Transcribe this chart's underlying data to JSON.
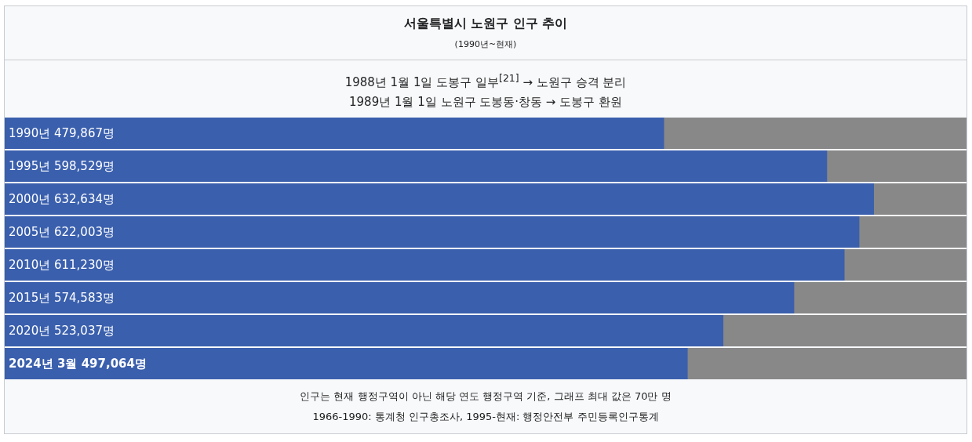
{
  "chart_data": {
    "type": "bar",
    "orientation": "horizontal",
    "title": "서울특별시 노원구 인구 추이",
    "subtitle": "(1990년~현재)",
    "annotations": [
      "1988년 1월 1일 도봉구 일부$^{[21]}$ → 노원구 승격 분리",
      "1989년 1월 1일 노원구 도봉동·창동 → 도봉구 환원",
      "인구는 현재 행정구역이 아닌 해당 연도 행정구역 기준, 그래프 최대 값은 70만 명",
      "1966-1990: 통계청 인구총조사, 1995-현재: 행정안전부 주민등록인구통계"
    ],
    "categories": [
      "1990년",
      "1995년",
      "2000년",
      "2005년",
      "2010년",
      "2015년",
      "2020년",
      "2024년 3월"
    ],
    "values": [
      479867,
      598529,
      632634,
      622003,
      611230,
      574583,
      523037,
      497064
    ],
    "value_labels": [
      "479,867명",
      "598,529명",
      "632,634명",
      "622,003명",
      "611,230명",
      "574,583명",
      "523,037명",
      "497,064명"
    ],
    "color": "#3a5fad",
    "xlim": [
      0,
      700000
    ],
    "tick_labels": false
  }
}
